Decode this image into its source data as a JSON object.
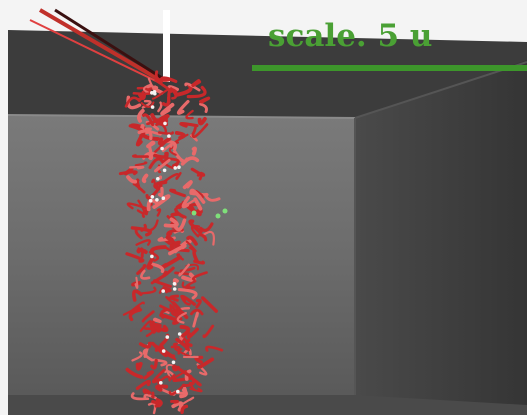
{
  "annotation": {
    "text": "scale. 5 u"
  }
}
